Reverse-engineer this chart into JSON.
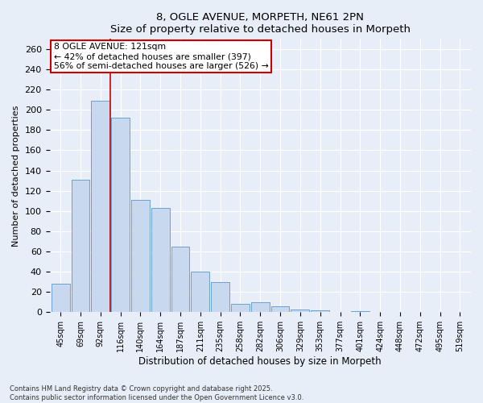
{
  "title": "8, OGLE AVENUE, MORPETH, NE61 2PN",
  "subtitle": "Size of property relative to detached houses in Morpeth",
  "xlabel": "Distribution of detached houses by size in Morpeth",
  "ylabel": "Number of detached properties",
  "categories": [
    "45sqm",
    "69sqm",
    "92sqm",
    "116sqm",
    "140sqm",
    "164sqm",
    "187sqm",
    "211sqm",
    "235sqm",
    "258sqm",
    "282sqm",
    "306sqm",
    "329sqm",
    "353sqm",
    "377sqm",
    "401sqm",
    "424sqm",
    "448sqm",
    "472sqm",
    "495sqm",
    "519sqm"
  ],
  "values": [
    28,
    131,
    209,
    192,
    111,
    103,
    65,
    40,
    30,
    8,
    10,
    6,
    3,
    2,
    0,
    1,
    0,
    0,
    0,
    0,
    0
  ],
  "bar_color": "#c8d9ef",
  "bar_edge_color": "#6aa0d0",
  "background_color": "#e8eef8",
  "grid_color": "#ffffff",
  "property_label": "8 OGLE AVENUE: 121sqm",
  "annotation_line1": "← 42% of detached houses are smaller (397)",
  "annotation_line2": "56% of semi-detached houses are larger (526) →",
  "vline_color": "#cc0000",
  "vline_position": 2.5,
  "annotation_box_color": "#ffffff",
  "annotation_box_edge": "#cc0000",
  "footer_line1": "Contains HM Land Registry data © Crown copyright and database right 2025.",
  "footer_line2": "Contains public sector information licensed under the Open Government Licence v3.0.",
  "ylim": [
    0,
    270
  ],
  "yticks": [
    0,
    20,
    40,
    60,
    80,
    100,
    120,
    140,
    160,
    180,
    200,
    220,
    240,
    260
  ]
}
